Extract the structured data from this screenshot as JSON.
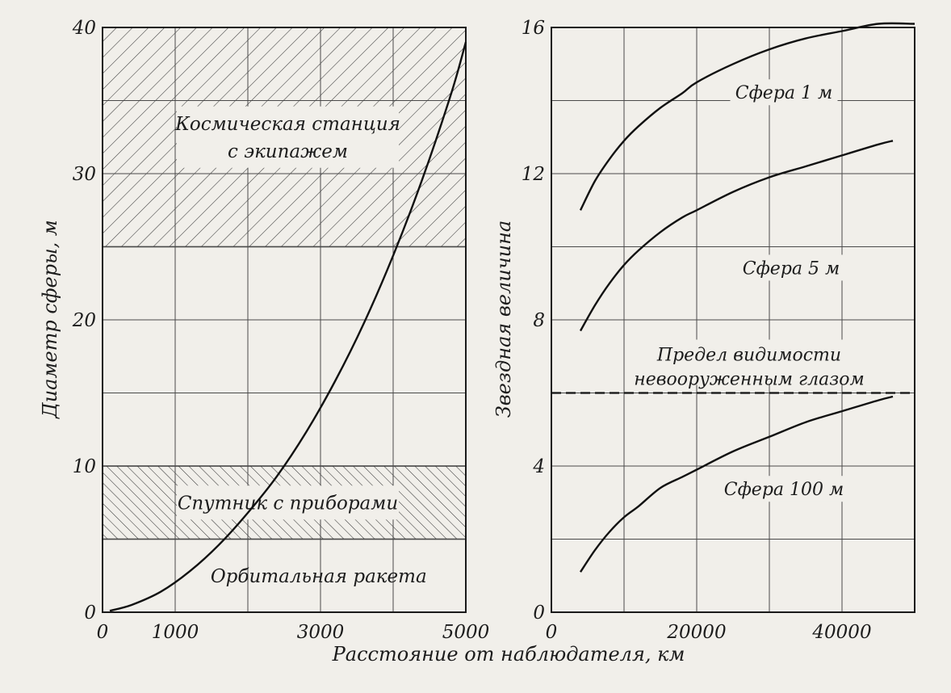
{
  "chart_data": [
    {
      "type": "line",
      "xlabel": "Расстояние от наблюдателя, км",
      "ylabel": "Диаметр сферы, м",
      "xlim": [
        0,
        5000
      ],
      "ylim": [
        0,
        40
      ],
      "x_ticks": [
        "0",
        "1000",
        "3000",
        "5000"
      ],
      "y_ticks": [
        "0",
        "10",
        "20",
        "30",
        "40"
      ],
      "grid": true,
      "regions": [
        {
          "label": "Космическая станция с экипажем",
          "lines": [
            "Космическая станция",
            "с экипажем"
          ],
          "y_from": 25,
          "y_to": 40,
          "fill": "hatch"
        },
        {
          "label": "Спутник с приборами",
          "lines": [
            "Спутник с приборами"
          ],
          "y_from": 5,
          "y_to": 10,
          "fill": "hatch"
        },
        {
          "label": "Орбитальная ракета",
          "lines": [
            "Орбитальная ракета"
          ],
          "y_from": 0,
          "y_to": 5,
          "fill": "none"
        }
      ],
      "series": [
        {
          "x": [
            100,
            400,
            800,
            1200,
            1600,
            2000,
            2400,
            2800,
            3200,
            3600,
            4000,
            4400,
            4800,
            5000
          ],
          "y": [
            0.1,
            0.5,
            1.4,
            2.8,
            4.6,
            6.8,
            9.3,
            12.3,
            15.8,
            19.8,
            24.4,
            29.6,
            35.5,
            39
          ]
        }
      ]
    },
    {
      "type": "line",
      "ylabel": "Звездная величина",
      "xlim": [
        0,
        50000
      ],
      "ylim": [
        0,
        16
      ],
      "x_ticks": [
        "0",
        "20000",
        "40000"
      ],
      "y_ticks": [
        "0",
        "4",
        "8",
        "12",
        "16"
      ],
      "grid": true,
      "reference_line": {
        "y": 6,
        "style": "dashed",
        "label": "Предел видимости невооруженным глазом",
        "lines": [
          "Предел видимости",
          "невооруженным глазом"
        ]
      },
      "series": [
        {
          "name": "Сфера 1 м",
          "x": [
            4000,
            6000,
            8000,
            10000,
            12000,
            15000,
            18000,
            20000,
            25000,
            30000,
            35000,
            40000,
            45000,
            50000
          ],
          "y": [
            11,
            11.8,
            12.4,
            12.9,
            13.3,
            13.8,
            14.2,
            14.5,
            15,
            15.4,
            15.7,
            15.9,
            16.1,
            16.1
          ]
        },
        {
          "name": "Сфера 5 м",
          "x": [
            4000,
            6000,
            8000,
            10000,
            12000,
            15000,
            18000,
            20000,
            25000,
            30000,
            35000,
            40000,
            45000,
            47000
          ],
          "y": [
            7.7,
            8.4,
            9,
            9.5,
            9.9,
            10.4,
            10.8,
            11,
            11.5,
            11.9,
            12.2,
            12.5,
            12.8,
            12.9
          ]
        },
        {
          "name": "Сфера 100 м",
          "x": [
            4000,
            6000,
            8000,
            10000,
            12000,
            15000,
            18000,
            20000,
            25000,
            30000,
            35000,
            40000,
            45000,
            47000
          ],
          "y": [
            1.1,
            1.7,
            2.2,
            2.6,
            2.9,
            3.4,
            3.7,
            3.9,
            4.4,
            4.8,
            5.2,
            5.5,
            5.8,
            5.9
          ]
        }
      ]
    }
  ]
}
